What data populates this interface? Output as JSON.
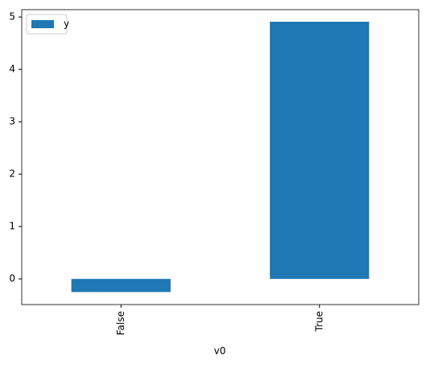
{
  "chart_data": {
    "type": "bar",
    "x_label": "v0",
    "categories": [
      "False",
      "True"
    ],
    "series": [
      {
        "name": "y",
        "color": "#1f77b4",
        "values": [
          -0.25,
          4.91
        ]
      }
    ],
    "ylim": [
      -0.49,
      5.14
    ],
    "yticks": [
      0,
      1,
      2,
      3,
      4,
      5
    ],
    "legend": "upper left"
  }
}
